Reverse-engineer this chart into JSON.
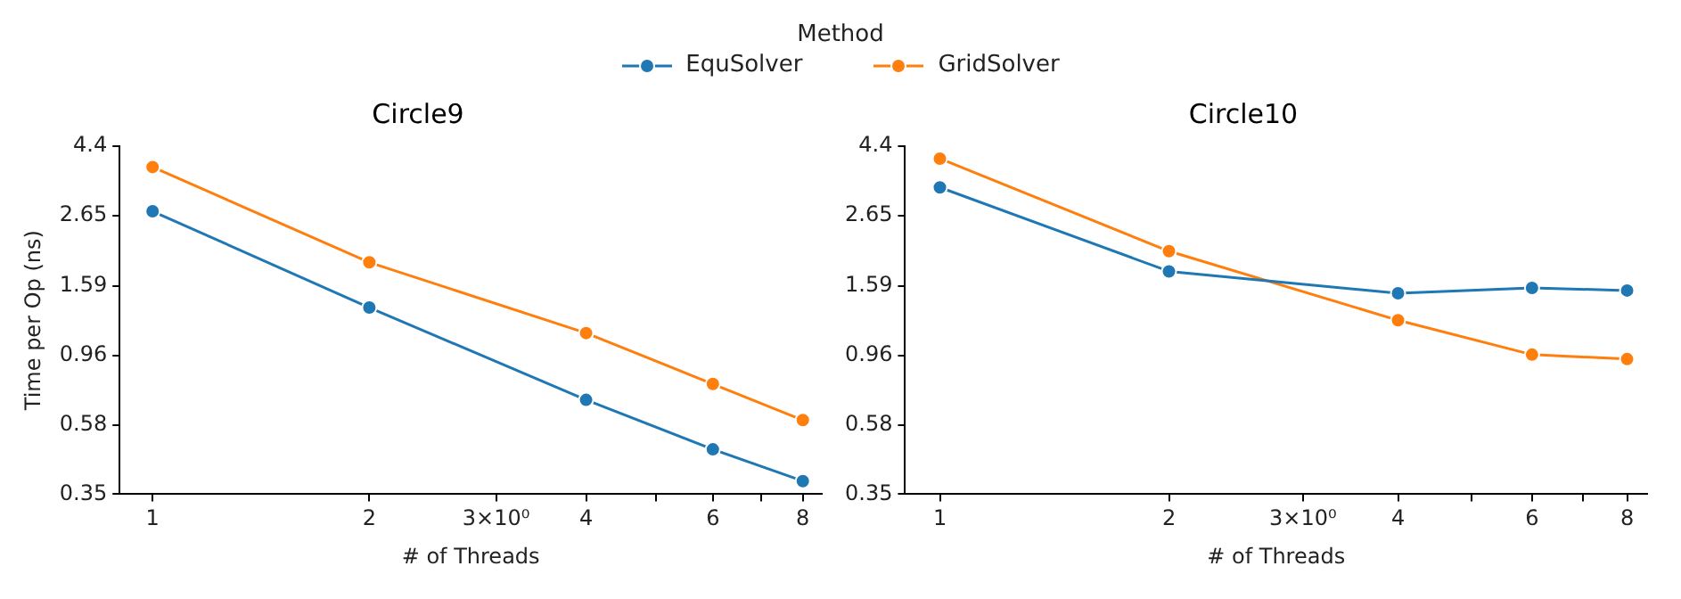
{
  "chart_data": [
    {
      "type": "line",
      "title": "Circle9",
      "xlabel": "# of Threads",
      "ylabel": "Time per Op (ns)",
      "legend_title": "Method",
      "legend": "top",
      "log": "xy",
      "grid": false,
      "marker": "circle",
      "line_style": "solid",
      "x": [
        1,
        2,
        4,
        6,
        8
      ],
      "xlim": [
        0.9,
        8.5
      ],
      "xticks": [
        1,
        2,
        {
          "value": 3,
          "label": "3×10⁰"
        },
        4,
        {
          "value": 5,
          "label": null
        },
        6,
        {
          "value": 7,
          "label": null
        },
        8
      ],
      "ylim": [
        0.35,
        4.4
      ],
      "yticks": [
        0.35,
        0.58,
        0.96,
        1.59,
        2.65,
        4.4
      ],
      "series": [
        {
          "name": "EquSolver",
          "color": "#1f77b4",
          "values": [
            2.74,
            1.36,
            0.695,
            0.485,
            0.385
          ]
        },
        {
          "name": "GridSolver",
          "color": "#ff7f0e",
          "values": [
            3.78,
            1.89,
            1.13,
            0.78,
            0.6
          ]
        }
      ]
    },
    {
      "type": "line",
      "title": "Circle10",
      "xlabel": "# of Threads",
      "log": "xy",
      "grid": false,
      "marker": "circle",
      "line_style": "solid",
      "x": [
        1,
        2,
        4,
        6,
        8
      ],
      "xlim": [
        0.9,
        8.5
      ],
      "xticks": [
        1,
        2,
        {
          "value": 3,
          "label": "3×10⁰"
        },
        4,
        {
          "value": 5,
          "label": null
        },
        6,
        {
          "value": 7,
          "label": null
        },
        8
      ],
      "ylim": [
        0.35,
        4.4
      ],
      "yticks": [
        0.35,
        0.58,
        0.96,
        1.59,
        2.65,
        4.4
      ],
      "series": [
        {
          "color": "#1f77b4",
          "values": [
            3.26,
            1.77,
            1.51,
            1.57,
            1.54
          ]
        },
        {
          "color": "#ff7f0e",
          "values": [
            4.02,
            2.05,
            1.24,
            0.966,
            0.935
          ]
        }
      ]
    }
  ]
}
